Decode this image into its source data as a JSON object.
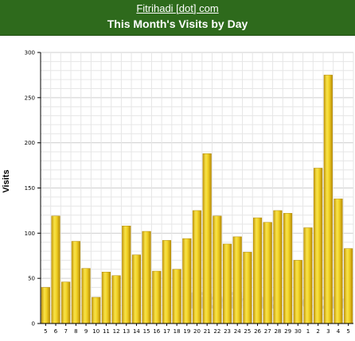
{
  "header": {
    "site_link": "Fitrihadi [dot] com",
    "background": "#2e6a1c"
  },
  "chart_data": {
    "type": "bar",
    "title": "This Month's Visits by Day",
    "xlabel": "",
    "ylabel": "Visits",
    "ylim": [
      0,
      300
    ],
    "yticks": [
      0,
      50,
      100,
      150,
      200,
      250,
      300
    ],
    "categories": [
      "5",
      "6",
      "7",
      "8",
      "9",
      "10",
      "11",
      "12",
      "13",
      "14",
      "15",
      "16",
      "17",
      "18",
      "19",
      "20",
      "21",
      "22",
      "23",
      "24",
      "25",
      "26",
      "27",
      "28",
      "29",
      "30",
      "1",
      "2",
      "3",
      "4",
      "5"
    ],
    "values": [
      40,
      119,
      46,
      91,
      61,
      29,
      57,
      53,
      108,
      76,
      102,
      58,
      92,
      60,
      94,
      125,
      188,
      119,
      88,
      96,
      79,
      117,
      112,
      125,
      122,
      70,
      106,
      172,
      275,
      138,
      83
    ],
    "grid": true,
    "bar_color": "#e8c41a",
    "watermark": "fitrihadi.com"
  }
}
